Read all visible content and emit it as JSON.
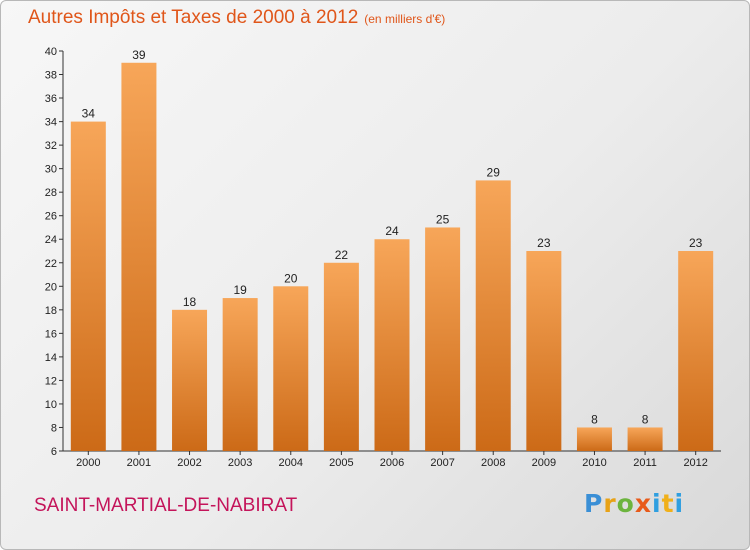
{
  "header": {
    "title": "Autres Impôts et Taxes de 2000 à 2012",
    "subtitle": "(en milliers d'€)"
  },
  "footer": {
    "commune": "SAINT-MARTIAL-DE-NABIRAT",
    "logo_text": "Proxiti"
  },
  "colors": {
    "bar_light": "#f7a659",
    "bar_dark": "#cc6a17",
    "title": "#e0561a",
    "commune": "#c4145a"
  },
  "chart_data": {
    "type": "bar",
    "title": "Autres Impôts et Taxes de 2000 à 2012",
    "subtitle": "(en milliers d'€)",
    "categories": [
      "2000",
      "2001",
      "2002",
      "2003",
      "2004",
      "2005",
      "2006",
      "2007",
      "2008",
      "2009",
      "2010",
      "2011",
      "2012"
    ],
    "values": [
      34,
      39,
      18,
      19,
      20,
      22,
      24,
      25,
      29,
      23,
      8,
      8,
      23
    ],
    "ylim": [
      6,
      40
    ],
    "yticks": [
      6,
      8,
      10,
      12,
      14,
      16,
      18,
      20,
      22,
      24,
      26,
      28,
      30,
      32,
      34,
      36,
      38,
      40
    ],
    "grid": false,
    "data_labels": true
  }
}
